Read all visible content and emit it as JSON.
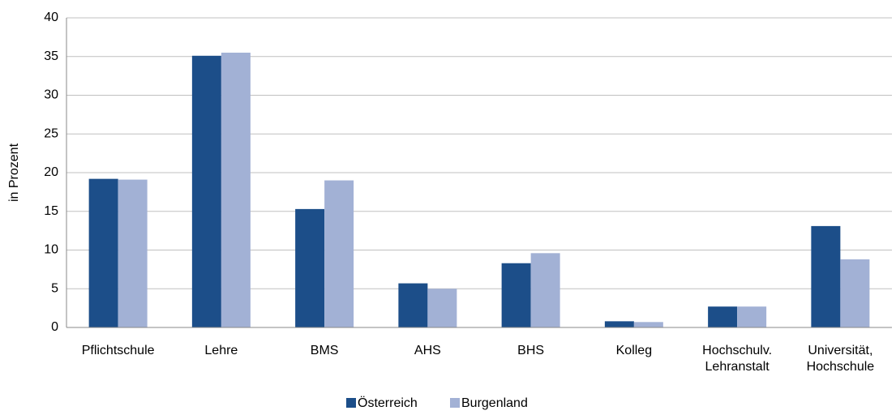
{
  "chart_data": {
    "type": "bar",
    "y_label": "in Prozent",
    "categories": [
      "Pflichtschule",
      "Lehre",
      "BMS",
      "AHS",
      "BHS",
      "Kolleg",
      "Hochschulv.\nLehranstalt",
      "Universität,\nHochschule"
    ],
    "series": [
      {
        "name": "Österreich",
        "color": "#1c4e89",
        "values": [
          19.2,
          35.1,
          15.3,
          5.7,
          8.3,
          0.8,
          2.7,
          13.1
        ]
      },
      {
        "name": "Burgenland",
        "color": "#a2b1d5",
        "values": [
          19.1,
          35.5,
          19.0,
          5.0,
          9.6,
          0.7,
          2.7,
          8.8
        ]
      }
    ],
    "ylim": [
      0,
      40
    ],
    "yticks": [
      0,
      5,
      10,
      15,
      20,
      25,
      30,
      35,
      40
    ],
    "grid": true,
    "legend": "bottom"
  }
}
